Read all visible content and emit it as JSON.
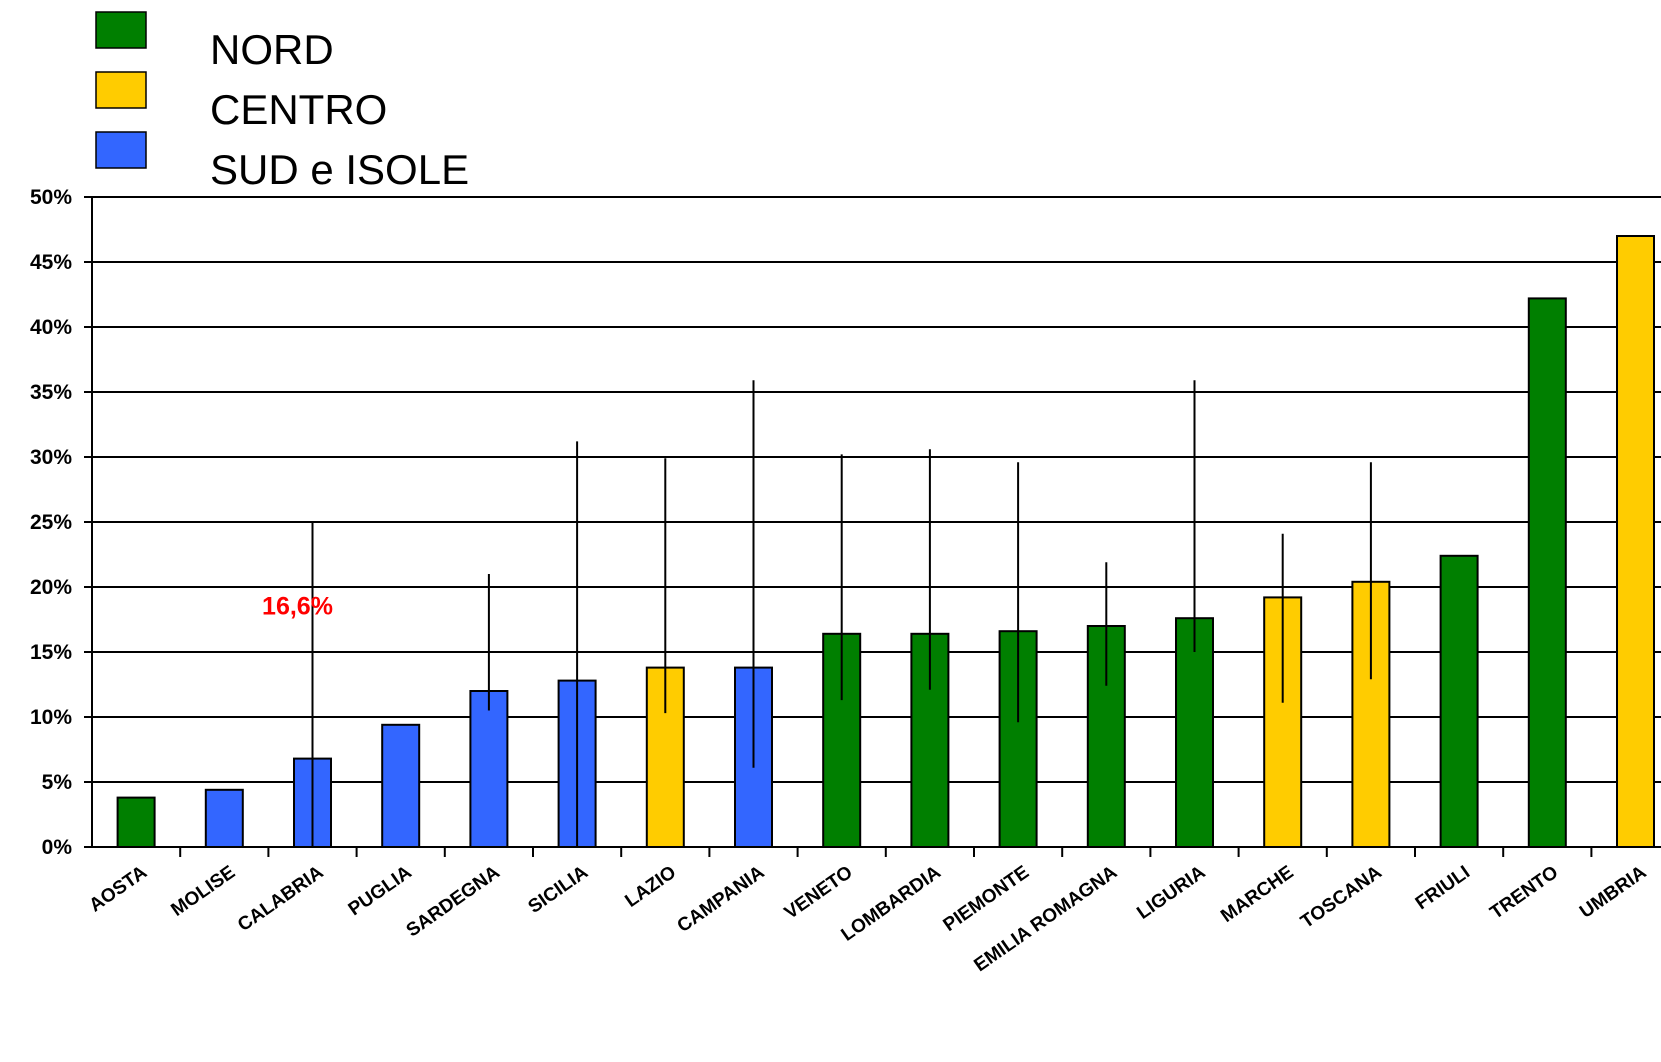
{
  "chart_data": {
    "type": "bar",
    "title": "",
    "xlabel": "",
    "ylabel": "",
    "ylim": [
      0,
      50
    ],
    "y_ticks": [
      "0%",
      "5%",
      "10%",
      "15%",
      "20%",
      "25%",
      "30%",
      "35%",
      "40%",
      "45%",
      "50%"
    ],
    "grid": true,
    "legend_position": "top-left",
    "legend": [
      {
        "name": "NORD",
        "color": "#007f00"
      },
      {
        "name": "CENTRO",
        "color": "#ffcc00"
      },
      {
        "name": "SUD e ISOLE",
        "color": "#3366ff"
      }
    ],
    "categories": [
      "AOSTA",
      "MOLISE",
      "CALABRIA",
      "PUGLIA",
      "SARDEGNA",
      "SICILIA",
      "LAZIO",
      "CAMPANIA",
      "VENETO",
      "LOMBARDIA",
      "PIEMONTE",
      "EMILIA ROMAGNA",
      "LIGURIA",
      "MARCHE",
      "TOSCANA",
      "FRIULI",
      "TRENTO",
      "UMBRIA"
    ],
    "values": [
      3.8,
      4.4,
      6.8,
      9.4,
      12.0,
      12.8,
      13.8,
      13.8,
      16.4,
      16.4,
      16.6,
      17.0,
      17.6,
      19.2,
      20.4,
      22.4,
      42.2,
      47.0
    ],
    "groups": [
      "NORD",
      "SUD e ISOLE",
      "SUD e ISOLE",
      "SUD e ISOLE",
      "SUD e ISOLE",
      "SUD e ISOLE",
      "CENTRO",
      "SUD e ISOLE",
      "NORD",
      "NORD",
      "NORD",
      "NORD",
      "NORD",
      "CENTRO",
      "CENTRO",
      "NORD",
      "NORD",
      "CENTRO"
    ],
    "error_low": [
      null,
      null,
      0.0,
      null,
      10.5,
      0.0,
      10.3,
      6.1,
      11.3,
      12.1,
      9.6,
      12.4,
      15.0,
      11.1,
      12.9,
      null,
      null,
      null
    ],
    "error_high": [
      null,
      null,
      25.0,
      null,
      21.0,
      31.2,
      29.9,
      35.9,
      30.2,
      30.6,
      29.6,
      21.9,
      35.9,
      24.1,
      29.6,
      null,
      null,
      null
    ],
    "annotations": [
      {
        "text": "16,6%",
        "x": "CALABRIA",
        "y": 18.5,
        "color": "#ff0000"
      }
    ]
  }
}
